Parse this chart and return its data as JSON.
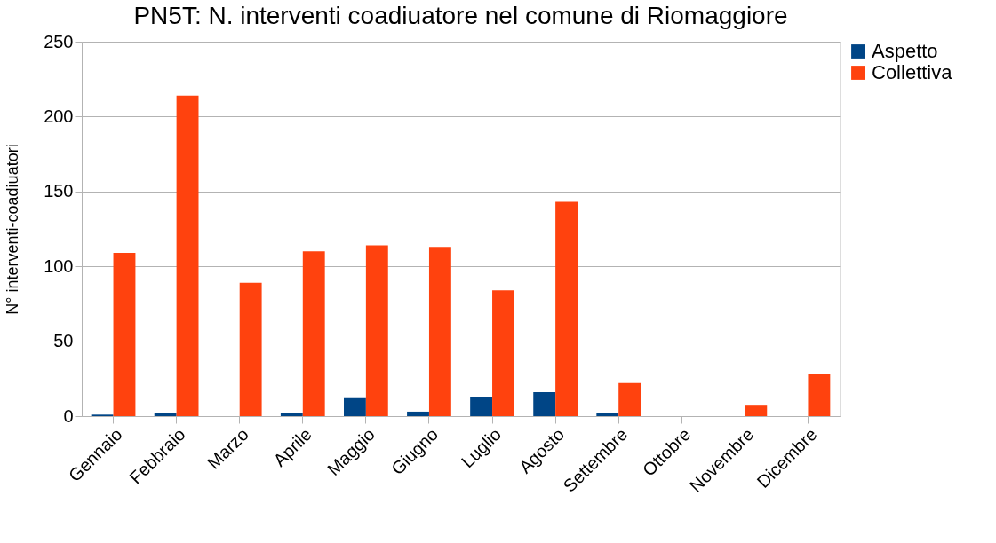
{
  "chart_data": {
    "type": "bar",
    "title": "PN5T: N. interventi coadiuatore nel comune di Riomaggiore",
    "ylabel": "N° interventi-coadiuatori",
    "categories": [
      "Gennaio",
      "Febbraio",
      "Marzo",
      "Aprile",
      "Maggio",
      "Giugno",
      "Luglio",
      "Agosto",
      "Settembre",
      "Ottobre",
      "Novembre",
      "Dicembre"
    ],
    "series": [
      {
        "name": "Aspetto",
        "color": "#004586",
        "values": [
          1,
          2,
          0,
          2,
          12,
          3,
          13,
          16,
          2,
          0,
          0,
          0
        ]
      },
      {
        "name": "Collettiva",
        "color": "#ff420e",
        "values": [
          109,
          214,
          89,
          110,
          114,
          113,
          84,
          143,
          22,
          0,
          7,
          28
        ]
      }
    ],
    "ylim": [
      0,
      250
    ],
    "yticks": [
      0,
      50,
      100,
      150,
      200,
      250
    ],
    "grid": "y",
    "legend": "right"
  }
}
